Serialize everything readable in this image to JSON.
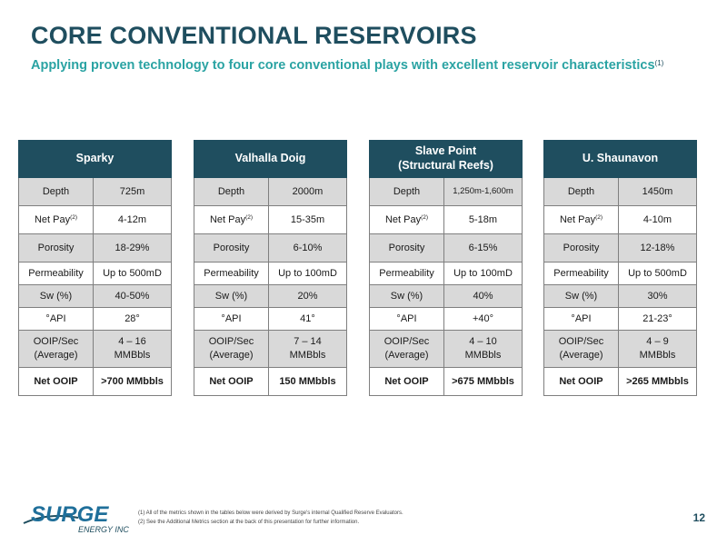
{
  "header": {
    "title": "CORE CONVENTIONAL RESERVOIRS",
    "subtitle": "Applying proven technology to four core conventional plays with excellent reservoir characteristics",
    "subtitle_note": "(1)"
  },
  "labels": {
    "depth": "Depth",
    "net_pay": "Net Pay",
    "net_pay_note": "(2)",
    "porosity": "Porosity",
    "permeability": "Permeability",
    "sw": "Sw (%)",
    "api": "°API",
    "ooip_sec_1": "OOIP/Sec",
    "ooip_sec_2": "(Average)",
    "net_ooip": "Net OOIP"
  },
  "tables": [
    {
      "name": "Sparky",
      "name_2": "",
      "depth": "725m",
      "net_pay": "4-12m",
      "porosity": "18-29%",
      "permeability": "Up to 500mD",
      "sw": "40-50%",
      "api": "28°",
      "ooip_1": "4 – 16",
      "ooip_2": "MMBbls",
      "net_ooip": ">700 MMbbls"
    },
    {
      "name": "Valhalla Doig",
      "name_2": "",
      "depth": "2000m",
      "net_pay": "15-35m",
      "porosity": "6-10%",
      "permeability": "Up to 100mD",
      "sw": "20%",
      "api": "41°",
      "ooip_1": "7 – 14",
      "ooip_2": "MMBbls",
      "net_ooip": "150 MMbbls"
    },
    {
      "name": "Slave Point",
      "name_2": "(Structural Reefs)",
      "depth": "1,250m-1,600m",
      "net_pay": "5-18m",
      "porosity": "6-15%",
      "permeability": "Up to 100mD",
      "sw": "40%",
      "api": "+40°",
      "ooip_1": "4 – 10",
      "ooip_2": "MMBbls",
      "net_ooip": ">675 MMbbls"
    },
    {
      "name": "U. Shaunavon",
      "name_2": "",
      "depth": "1450m",
      "net_pay": "4-10m",
      "porosity": "12-18%",
      "permeability": "Up to 500mD",
      "sw": "30%",
      "api": "21-23°",
      "ooip_1": "4 – 9",
      "ooip_2": "MMBbls",
      "net_ooip": ">265 MMbbls"
    }
  ],
  "footer": {
    "logo_text": "SURGE",
    "logo_sub": "ENERGY INC",
    "note_1": "(1) All of the metrics shown in the tables below were derived by Surge's internal Qualified Reserve Evaluators.",
    "note_2": "(2) See the Additional Metrics section at the back of this presentation for further information.",
    "page_number": "12"
  },
  "colors": {
    "title": "#1f4e5f",
    "subtitle": "#2aa3a3",
    "header_fill": "#1f4e5f",
    "row_shade": "#d9d9d9"
  }
}
